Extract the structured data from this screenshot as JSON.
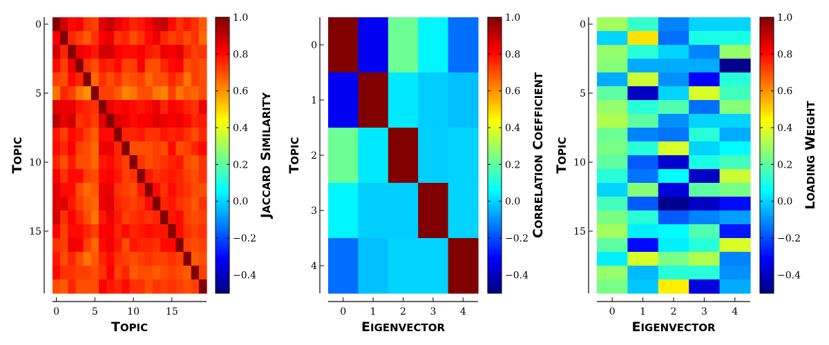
{
  "chart_data": [
    {
      "type": "heatmap",
      "xlabel": "Topic",
      "ylabel": "Topic",
      "colorbar_label": "Jaccard Similarity",
      "x_ticks": [
        "0",
        "5",
        "10",
        "15"
      ],
      "y_ticks": [
        "0",
        "5",
        "10",
        "15"
      ],
      "colorbar_ticks": [
        "1.0",
        "0.8",
        "0.6",
        "0.4",
        "0.2",
        "0.0",
        "−0.2",
        "−0.4"
      ],
      "clim": [
        -0.5,
        1.0
      ],
      "colormap": "jet",
      "rows": 20,
      "cols": 20,
      "values": [
        [
          1.0,
          0.88,
          0.8,
          0.82,
          0.74,
          0.72,
          0.86,
          0.9,
          0.84,
          0.8,
          0.76,
          0.78,
          0.82,
          0.88,
          0.9,
          0.8,
          0.74,
          0.78,
          0.74,
          0.68
        ],
        [
          0.82,
          1.0,
          0.76,
          0.72,
          0.68,
          0.74,
          0.82,
          0.84,
          0.74,
          0.76,
          0.7,
          0.74,
          0.8,
          0.84,
          0.76,
          0.72,
          0.74,
          0.7,
          0.74,
          0.66
        ],
        [
          0.88,
          0.76,
          1.0,
          0.84,
          0.82,
          0.78,
          0.88,
          0.88,
          0.82,
          0.8,
          0.8,
          0.82,
          0.78,
          0.76,
          0.84,
          0.82,
          0.86,
          0.76,
          0.72,
          0.74
        ],
        [
          0.8,
          0.72,
          0.84,
          1.0,
          0.74,
          0.7,
          0.78,
          0.76,
          0.8,
          0.72,
          0.72,
          0.82,
          0.7,
          0.7,
          0.76,
          0.8,
          0.82,
          0.7,
          0.72,
          0.7
        ],
        [
          0.72,
          0.7,
          0.8,
          0.76,
          1.0,
          0.66,
          0.74,
          0.7,
          0.74,
          0.68,
          0.7,
          0.72,
          0.66,
          0.7,
          0.7,
          0.76,
          0.72,
          0.64,
          0.72,
          0.7
        ],
        [
          0.64,
          0.76,
          0.72,
          0.64,
          0.6,
          1.0,
          0.72,
          0.72,
          0.68,
          0.62,
          0.64,
          0.7,
          0.7,
          0.64,
          0.62,
          0.72,
          0.64,
          0.68,
          0.66,
          0.7
        ],
        [
          0.86,
          0.84,
          0.84,
          0.78,
          0.76,
          0.74,
          1.0,
          0.84,
          0.8,
          0.82,
          0.8,
          0.78,
          0.8,
          0.84,
          0.76,
          0.82,
          0.8,
          0.76,
          0.74,
          0.84
        ],
        [
          0.92,
          0.84,
          0.88,
          0.74,
          0.76,
          0.72,
          0.86,
          1.0,
          0.86,
          0.84,
          0.8,
          0.82,
          0.82,
          0.86,
          0.84,
          0.82,
          0.84,
          0.8,
          0.76,
          0.78
        ],
        [
          0.78,
          0.72,
          0.8,
          0.78,
          0.72,
          0.68,
          0.8,
          0.8,
          1.0,
          0.76,
          0.76,
          0.78,
          0.74,
          0.74,
          0.78,
          0.76,
          0.78,
          0.74,
          0.7,
          0.76
        ],
        [
          0.8,
          0.76,
          0.82,
          0.72,
          0.7,
          0.66,
          0.84,
          0.84,
          0.76,
          1.0,
          0.7,
          0.7,
          0.7,
          0.72,
          0.7,
          0.8,
          0.7,
          0.72,
          0.76,
          0.8
        ],
        [
          0.76,
          0.7,
          0.78,
          0.7,
          0.7,
          0.66,
          0.78,
          0.8,
          0.76,
          0.72,
          1.0,
          0.74,
          0.7,
          0.72,
          0.74,
          0.76,
          0.78,
          0.7,
          0.68,
          0.74
        ],
        [
          0.82,
          0.74,
          0.8,
          0.8,
          0.72,
          0.7,
          0.8,
          0.82,
          0.78,
          0.72,
          0.74,
          1.0,
          0.78,
          0.74,
          0.76,
          0.78,
          0.76,
          0.72,
          0.7,
          0.74
        ],
        [
          0.86,
          0.8,
          0.8,
          0.7,
          0.66,
          0.68,
          0.84,
          0.84,
          0.74,
          0.72,
          0.7,
          0.78,
          1.0,
          0.8,
          0.74,
          0.8,
          0.76,
          0.74,
          0.7,
          0.7
        ],
        [
          0.86,
          0.86,
          0.78,
          0.72,
          0.68,
          0.66,
          0.84,
          0.86,
          0.76,
          0.74,
          0.72,
          0.74,
          0.8,
          1.0,
          0.76,
          0.78,
          0.74,
          0.72,
          0.68,
          0.74
        ],
        [
          0.88,
          0.74,
          0.82,
          0.76,
          0.7,
          0.64,
          0.78,
          0.84,
          0.78,
          0.72,
          0.74,
          0.76,
          0.74,
          0.76,
          1.0,
          0.78,
          0.8,
          0.72,
          0.7,
          0.72
        ],
        [
          0.82,
          0.72,
          0.8,
          0.8,
          0.76,
          0.72,
          0.82,
          0.82,
          0.76,
          0.8,
          0.76,
          0.78,
          0.8,
          0.78,
          0.78,
          1.0,
          0.8,
          0.74,
          0.72,
          0.74
        ],
        [
          0.74,
          0.72,
          0.84,
          0.82,
          0.72,
          0.66,
          0.8,
          0.84,
          0.78,
          0.7,
          0.78,
          0.76,
          0.76,
          0.74,
          0.8,
          0.8,
          1.0,
          0.72,
          0.7,
          0.72
        ],
        [
          0.78,
          0.7,
          0.76,
          0.7,
          0.64,
          0.68,
          0.76,
          0.8,
          0.74,
          0.72,
          0.7,
          0.72,
          0.74,
          0.72,
          0.72,
          0.74,
          0.72,
          1.0,
          0.68,
          0.7
        ],
        [
          0.8,
          0.74,
          0.74,
          0.72,
          0.72,
          0.7,
          0.74,
          0.82,
          0.72,
          0.76,
          0.68,
          0.7,
          0.7,
          0.68,
          0.7,
          0.72,
          0.7,
          0.68,
          1.0,
          0.72
        ],
        [
          0.7,
          0.68,
          0.76,
          0.7,
          0.7,
          0.7,
          0.82,
          0.78,
          0.76,
          0.8,
          0.74,
          0.74,
          0.7,
          0.74,
          0.72,
          0.74,
          0.72,
          0.7,
          0.72,
          1.0
        ]
      ]
    },
    {
      "type": "heatmap",
      "xlabel": "Eigenvector",
      "ylabel": "Topic",
      "colorbar_label": "Correlation Coefficient",
      "x_ticks": [
        "0",
        "1",
        "2",
        "3",
        "4"
      ],
      "y_ticks": [
        "0",
        "1",
        "2",
        "3",
        "4"
      ],
      "colorbar_ticks": [
        "1.0",
        "0.8",
        "0.6",
        "0.4",
        "0.2",
        "0.0",
        "−0.2",
        "−0.4"
      ],
      "clim": [
        -0.5,
        1.0
      ],
      "colormap": "jet",
      "rows": 5,
      "cols": 5,
      "values": [
        [
          1.0,
          -0.33,
          0.22,
          0.05,
          -0.15
        ],
        [
          -0.33,
          1.0,
          0.03,
          -0.01,
          -0.03
        ],
        [
          0.22,
          0.03,
          1.0,
          -0.01,
          0.0
        ],
        [
          0.05,
          -0.01,
          -0.01,
          1.0,
          0.0
        ],
        [
          -0.15,
          -0.03,
          0.0,
          0.0,
          1.0
        ]
      ]
    },
    {
      "type": "heatmap",
      "xlabel": "Eigenvector",
      "ylabel": "Topic",
      "colorbar_label": "Loading Weight",
      "x_ticks": [
        "0",
        "1",
        "2",
        "3",
        "4"
      ],
      "y_ticks": [
        "0",
        "5",
        "10",
        "15"
      ],
      "colorbar_ticks": [
        "1.0",
        "0.8",
        "0.6",
        "0.4",
        "0.2",
        "0.0",
        "−0.2",
        "−0.4"
      ],
      "clim": [
        -0.5,
        1.0
      ],
      "colormap": "jet",
      "rows": 20,
      "cols": 5,
      "values": [
        [
          0.3,
          0.14,
          -0.12,
          0.0,
          0.0
        ],
        [
          0.0,
          0.48,
          -0.15,
          0.1,
          0.1
        ],
        [
          0.28,
          0.12,
          0.0,
          -0.12,
          0.28
        ],
        [
          0.26,
          -0.06,
          -0.06,
          -0.06,
          -0.48
        ],
        [
          -0.06,
          0.36,
          -0.1,
          -0.32,
          0.12
        ],
        [
          0.2,
          -0.4,
          0.0,
          0.38,
          0.16
        ],
        [
          0.28,
          0.12,
          0.18,
          -0.15,
          0.26
        ],
        [
          0.32,
          0.2,
          -0.1,
          0.0,
          0.0
        ],
        [
          0.22,
          -0.12,
          -0.14,
          0.12,
          -0.06
        ],
        [
          0.24,
          0.12,
          0.38,
          0.0,
          0.06
        ],
        [
          0.2,
          -0.18,
          -0.38,
          0.1,
          0.16
        ],
        [
          0.12,
          -0.14,
          0.06,
          -0.4,
          0.36
        ],
        [
          0.0,
          0.26,
          -0.36,
          0.2,
          0.24
        ],
        [
          0.16,
          -0.18,
          -0.48,
          -0.4,
          -0.3
        ],
        [
          0.24,
          0.12,
          -0.18,
          -0.12,
          -0.08
        ],
        [
          0.3,
          0.04,
          0.06,
          0.18,
          -0.28
        ],
        [
          0.2,
          -0.3,
          0.04,
          0.12,
          0.38
        ],
        [
          0.04,
          0.38,
          0.24,
          0.32,
          -0.12
        ],
        [
          0.28,
          -0.04,
          0.12,
          0.12,
          -0.1
        ],
        [
          0.24,
          -0.02,
          0.46,
          -0.36,
          -0.06
        ]
      ]
    }
  ]
}
